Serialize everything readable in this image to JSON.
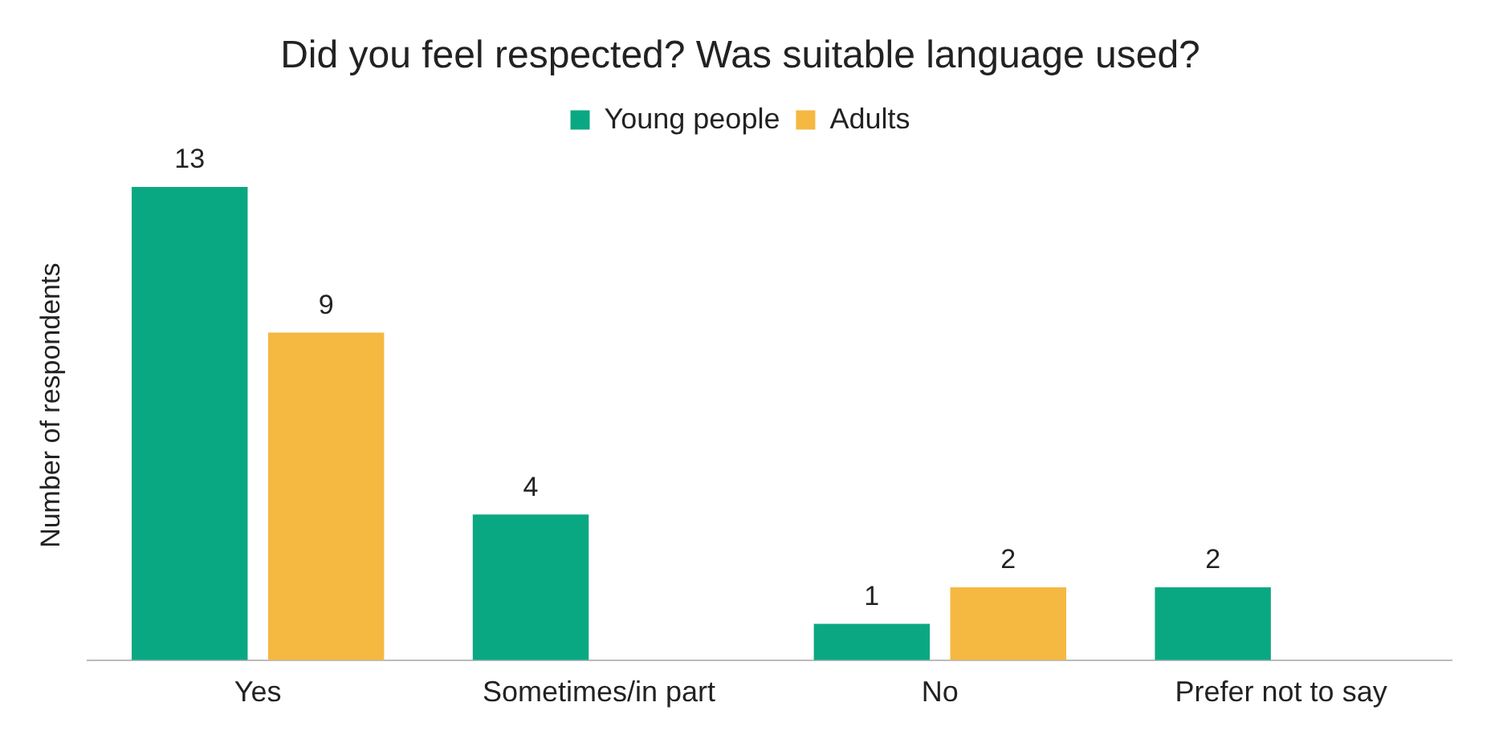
{
  "chart_data": {
    "type": "bar",
    "title": "Did you feel respected? Was suitable language used?",
    "ylabel": "Number of respondents",
    "categories": [
      "Yes",
      "Sometimes/in part",
      "No",
      "Prefer not to say"
    ],
    "series": [
      {
        "name": "Young people",
        "color": "#0aa882",
        "values": [
          13,
          4,
          1,
          2
        ]
      },
      {
        "name": "Adults",
        "color": "#f5b841",
        "values": [
          9,
          null,
          2,
          null
        ]
      }
    ],
    "data_labels": true,
    "grid": false,
    "legend": "top"
  }
}
